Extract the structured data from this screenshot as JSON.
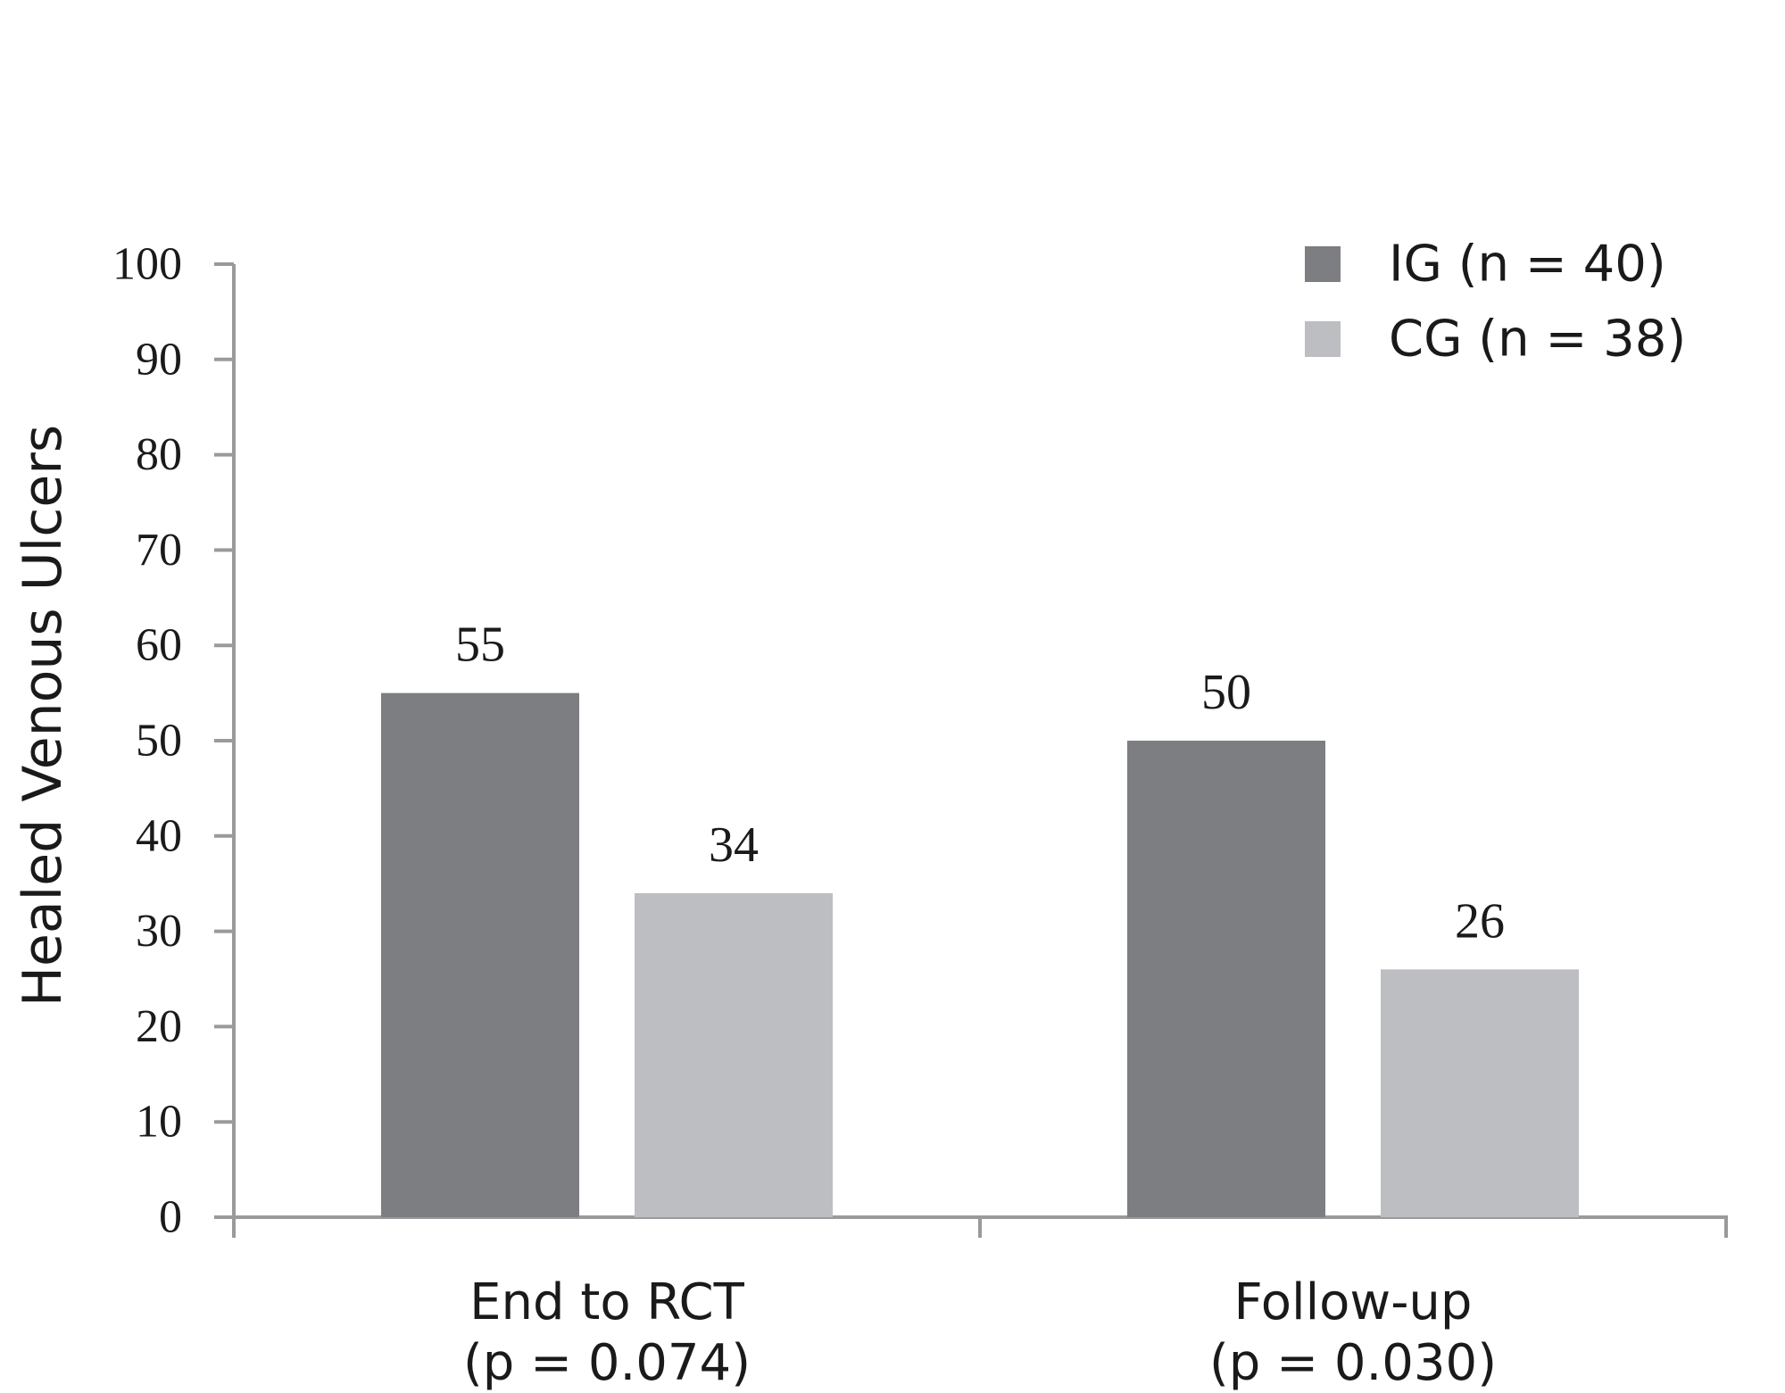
{
  "chart_data": {
    "type": "bar",
    "title": "",
    "xlabel": "",
    "ylabel": "Healed Venous Ulcers",
    "ylim": [
      0,
      100
    ],
    "yticks": [
      "0",
      "10",
      "20",
      "30",
      "40",
      "50",
      "60",
      "70",
      "80",
      "90",
      "100"
    ],
    "categories": [
      {
        "line1": "End to RCT",
        "line2": "(p = 0.074)"
      },
      {
        "line1": "Follow-up",
        "line2": "(p = 0.030)"
      }
    ],
    "series": [
      {
        "name": "IG (n = 40)",
        "color": "#7d7e82",
        "values": [
          55,
          50
        ]
      },
      {
        "name": "CG (n = 38)",
        "color": "#bdbec1",
        "values": [
          34,
          26
        ]
      }
    ],
    "data_labels": [
      "55",
      "50",
      "34",
      "26"
    ],
    "legend_position": "top-right",
    "grid": false
  }
}
